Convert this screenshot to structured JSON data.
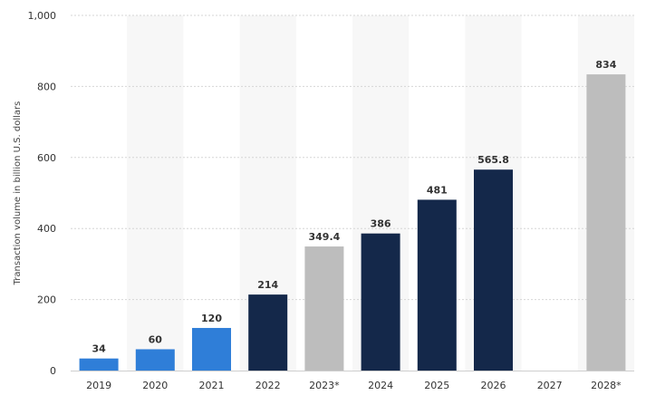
{
  "chart_data": {
    "type": "bar",
    "title": "",
    "xlabel": "",
    "ylabel": "Transaction volume in billion U.S. dollars",
    "ylim": [
      0,
      1000
    ],
    "yticks": [
      0,
      200,
      400,
      600,
      800,
      1000
    ],
    "ytick_labels": [
      "0",
      "200",
      "400",
      "600",
      "800",
      "1,000"
    ],
    "grid": "horizontal dotted",
    "legend": "none",
    "categories": [
      "2019",
      "2020",
      "2021",
      "2022",
      "2023*",
      "2024",
      "2025",
      "2026",
      "2027",
      "2028*"
    ],
    "values": [
      34,
      60,
      120,
      214,
      349.4,
      386,
      481,
      565.8,
      null,
      834
    ],
    "value_labels": [
      "34",
      "60",
      "120",
      "214",
      "349.4",
      "386",
      "481",
      "565.8",
      "",
      "834"
    ],
    "bar_colors": [
      "#2f7ed8",
      "#2f7ed8",
      "#2f7ed8",
      "#14284a",
      "#bdbdbd",
      "#14284a",
      "#14284a",
      "#14284a",
      "#14284a",
      "#bdbdbd"
    ],
    "band_color": "#f7f7f7"
  }
}
